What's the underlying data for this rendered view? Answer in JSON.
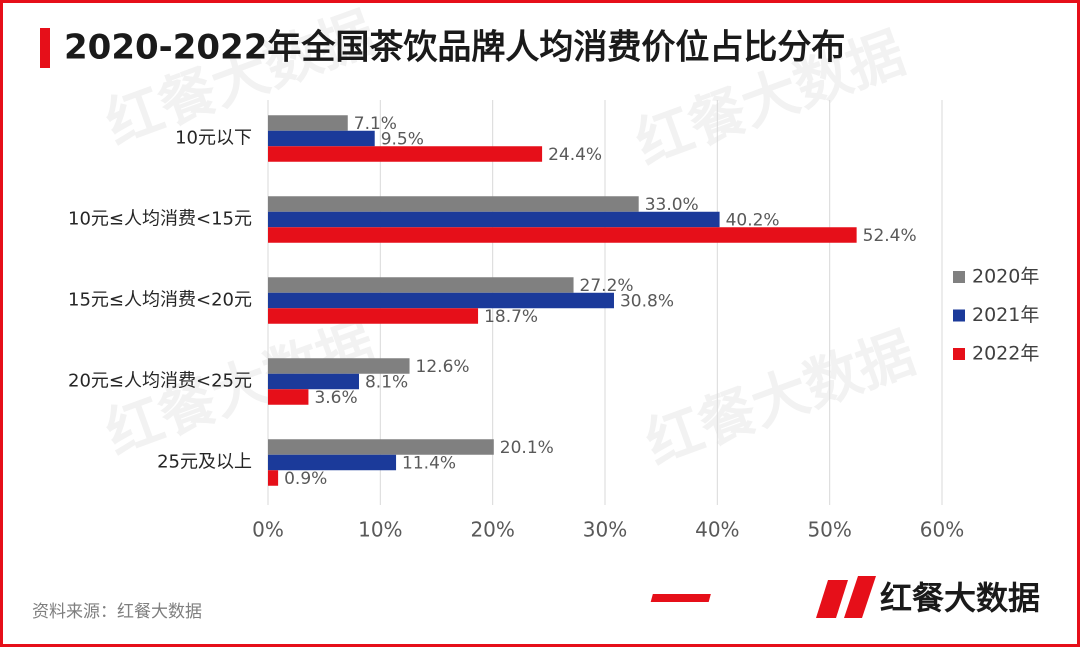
{
  "chart_data": {
    "type": "hbar",
    "title": "2020-2022年全国茶饮品牌人均消费价位占比分布",
    "categories": [
      "10元以下",
      "10元≤人均消费<15元",
      "15元≤人均消费<20元",
      "20元≤人均消费<25元",
      "25元及以上"
    ],
    "series": [
      {
        "name": "2020年",
        "color": "#808080",
        "values": [
          7.1,
          33.0,
          27.2,
          12.6,
          20.1
        ],
        "value_labels": [
          "7.1%",
          "33.0%",
          "27.2%",
          "12.6%",
          "20.1%"
        ]
      },
      {
        "name": "2021年",
        "color": "#1b3a9a",
        "values": [
          9.5,
          40.2,
          30.8,
          8.1,
          11.4
        ],
        "value_labels": [
          "9.5%",
          "40.2%",
          "30.8%",
          "8.1%",
          "11.4%"
        ]
      },
      {
        "name": "2022年",
        "color": "#e60f19",
        "values": [
          24.4,
          52.4,
          18.7,
          3.6,
          0.9
        ],
        "value_labels": [
          "24.4%",
          "52.4%",
          "18.7%",
          "3.6%",
          "0.9%"
        ]
      }
    ],
    "xlim": [
      0,
      60
    ],
    "xticks": [
      {
        "value": 0,
        "label": "0%"
      },
      {
        "value": 10,
        "label": "10%"
      },
      {
        "value": 20,
        "label": "20%"
      },
      {
        "value": 30,
        "label": "30%"
      },
      {
        "value": 40,
        "label": "40%"
      },
      {
        "value": 50,
        "label": "50%"
      },
      {
        "value": 60,
        "label": "60%"
      }
    ],
    "grid": true,
    "legend": "right",
    "source": "资料来源：红餐大数据",
    "logo": "红餐大数据"
  }
}
